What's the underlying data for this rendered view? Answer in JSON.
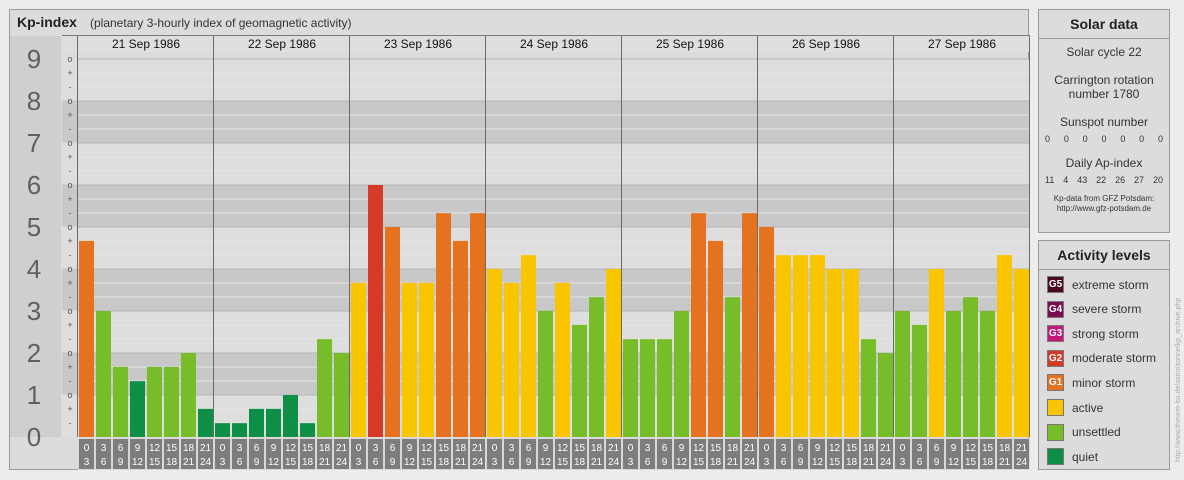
{
  "header": {
    "title": "Kp-index",
    "subtitle": "(planetary 3-hourly index of geomagnetic activity)"
  },
  "chart_data": {
    "type": "bar",
    "ylim": [
      0,
      9
    ],
    "y_ticks": [
      "0",
      "1",
      "2",
      "3",
      "4",
      "5",
      "6",
      "7",
      "8",
      "9"
    ],
    "thirds_labels": [
      "-",
      "+",
      "o"
    ],
    "days": [
      "21 Sep 1986",
      "22 Sep 1986",
      "23 Sep 1986",
      "24 Sep 1986",
      "25 Sep 1986",
      "26 Sep 1986",
      "27 Sep 1986"
    ],
    "slot_labels": [
      [
        "0",
        "3"
      ],
      [
        "3",
        "6"
      ],
      [
        "6",
        "9"
      ],
      [
        "9",
        "12"
      ],
      [
        "12",
        "15"
      ],
      [
        "15",
        "18"
      ],
      [
        "18",
        "21"
      ],
      [
        "21",
        "24"
      ]
    ],
    "values": [
      [
        4.67,
        3.0,
        1.67,
        1.33,
        1.67,
        1.67,
        2.0,
        0.67
      ],
      [
        0.33,
        0.33,
        0.67,
        0.67,
        1.0,
        0.33,
        2.33,
        2.0
      ],
      [
        3.67,
        6.0,
        5.0,
        3.67,
        3.67,
        5.33,
        4.67,
        5.33
      ],
      [
        4.0,
        3.67,
        4.33,
        3.0,
        3.67,
        2.67,
        3.33,
        4.0
      ],
      [
        2.33,
        2.33,
        2.33,
        3.0,
        5.33,
        4.67,
        3.33,
        5.33
      ],
      [
        5.0,
        4.33,
        4.33,
        4.33,
        4.0,
        4.0,
        2.33,
        2.0
      ],
      [
        3.0,
        2.67,
        4.0,
        3.0,
        3.33,
        3.0,
        4.33,
        4.0
      ]
    ],
    "colors": {
      "quiet": "#0e8f46",
      "unsettled": "#77bd2a",
      "active": "#f9c400",
      "G1": "#e5721f",
      "G2": "#d63a26",
      "G3": "#c5177a",
      "G4": "#7a0d4e",
      "G5": "#4a0a26"
    },
    "grid": true
  },
  "solar": {
    "title": "Solar data",
    "cycle": "Solar cycle 22",
    "carrington_line1": "Carrington rotation",
    "carrington_line2": "number 1780",
    "sunspot_label": "Sunspot number",
    "sunspot_values": [
      "0",
      "0",
      "0",
      "0",
      "0",
      "0",
      "0"
    ],
    "ap_label": "Daily Ap-index",
    "ap_values": [
      "11",
      "4",
      "43",
      "22",
      "26",
      "27",
      "20"
    ],
    "credit_line1": "Kp-data from GFZ Potsdam:",
    "credit_line2": "http://www.gfz-potsdam.de"
  },
  "activity": {
    "title": "Activity levels",
    "levels": [
      {
        "badge": "G5",
        "label": "extreme storm",
        "color": "#4a0a26"
      },
      {
        "badge": "G4",
        "label": "severe storm",
        "color": "#7a0d4e"
      },
      {
        "badge": "G3",
        "label": "strong storm",
        "color": "#c5177a"
      },
      {
        "badge": "G2",
        "label": "moderate storm",
        "color": "#d63a26"
      },
      {
        "badge": "G1",
        "label": "minor storm",
        "color": "#e5721f"
      },
      {
        "badge": "",
        "label": "active",
        "color": "#f9c400"
      },
      {
        "badge": "",
        "label": "unsettled",
        "color": "#77bd2a"
      },
      {
        "badge": "",
        "label": "quiet",
        "color": "#0e8f46"
      }
    ]
  },
  "side_credit": "http://www.theurer-bu.de/astro/sonne/kp_archive.php"
}
